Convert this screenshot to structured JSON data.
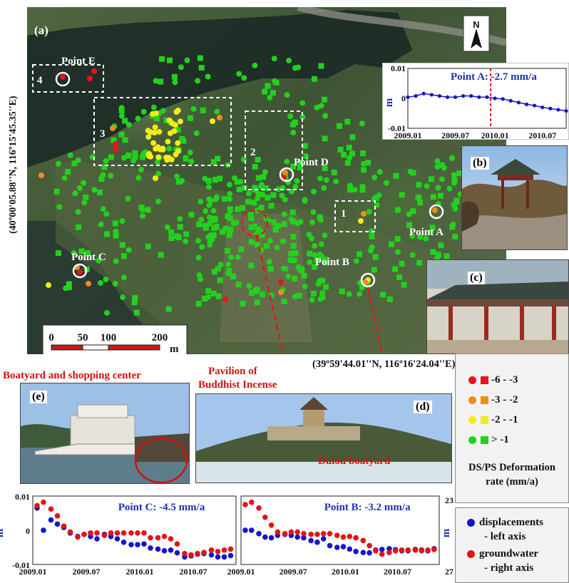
{
  "map": {
    "panel_label": "(a)",
    "coord_left": "(40º00'05.88''N, 116º15'45.35''E)",
    "coord_bottom": "(39º59'44.01''N, 116º16'24.04''E)",
    "north_label": "N",
    "scale": {
      "ticks": [
        "0",
        "50",
        "100",
        "200"
      ],
      "unit": "m"
    },
    "areas": [
      "1",
      "2",
      "3",
      "4"
    ],
    "points": [
      "Point A",
      "Point B",
      "Point C",
      "Point D",
      "Point E"
    ]
  },
  "photos": {
    "b": "(b)",
    "c": "(c)",
    "d": "(d)",
    "e": "(e)",
    "e_caption": "Boatyard and shopping center",
    "d_caption_1": "Pavilion of",
    "d_caption_2": "Buddhist Incense",
    "d_caption_3": "Duiou boatyard"
  },
  "legend": {
    "rows": [
      {
        "label": "-6 - -3",
        "color": "#e8131b"
      },
      {
        "label": "-3 - -2",
        "color": "#f28c1c"
      },
      {
        "label": "-2 - -1",
        "color": "#f3ec16"
      },
      {
        "label": "> -1",
        "color": "#22d11d"
      }
    ],
    "title_1": "DS/PS Deformation",
    "title_2": "rate (mm/a)",
    "series_1": "displacements",
    "series_1b": "- left axis",
    "series_2": "groundwater",
    "series_2b": "- right axis",
    "series_1_color": "#1616c8",
    "series_2_color": "#e31414"
  },
  "chart_data": [
    {
      "type": "line",
      "title": "Point A: -2.7 mm/a",
      "ylabel": "m",
      "x": [
        "2009.01",
        "2009.02",
        "2009.04",
        "2009.05",
        "2009.06",
        "2009.07",
        "2009.08",
        "2009.09",
        "2009.10",
        "2009.11",
        "2009.12",
        "2010.01",
        "2010.02",
        "2010.03",
        "2010.04",
        "2010.05",
        "2010.06",
        "2010.07",
        "2010.08",
        "2010.09",
        "2010.10"
      ],
      "values": [
        0.0004,
        0.0008,
        0.0016,
        0.0012,
        0.0008,
        0.0004,
        0.0004,
        0.0008,
        0.0008,
        0.0004,
        0.0004,
        0.0,
        -0.0002,
        -0.0008,
        -0.0014,
        -0.002,
        -0.0024,
        -0.003,
        -0.0034,
        -0.0038,
        -0.0042
      ],
      "marker_x": "2010.01",
      "ylim": [
        -0.01,
        0.01
      ],
      "yticks": [
        "0.01",
        "0",
        "-0.01"
      ],
      "xticks": [
        "2009.01",
        "2009.07",
        "2010.01",
        "2010.07"
      ]
    },
    {
      "type": "scatter",
      "title": "Point C: -4.5 mm/a",
      "ylabel": "m",
      "ylim": [
        -0.01,
        0.01
      ],
      "yticks": [
        "0.01",
        "0",
        "-0.01"
      ],
      "xticks": [
        "2009.01",
        "2009.07",
        "2010.01",
        "2010.07"
      ],
      "series": [
        {
          "name": "displacements",
          "x": [
            0.0,
            0.06,
            0.13,
            0.19,
            0.25,
            0.31,
            0.38,
            0.44,
            0.5,
            0.56,
            0.63,
            0.69,
            0.75,
            0.81,
            0.88,
            0.94,
            1.0,
            1.06,
            1.13,
            1.19,
            1.25,
            1.31,
            1.38,
            1.44,
            1.5,
            1.56,
            1.63,
            1.69,
            1.75,
            1.81
          ],
          "values": [
            0.0065,
            0.0,
            0.003,
            0.0018,
            0.0008,
            -0.0008,
            -0.0018,
            -0.0012,
            -0.0018,
            -0.0025,
            -0.0012,
            -0.0018,
            -0.0025,
            -0.0035,
            -0.0042,
            -0.0042,
            -0.004,
            -0.0052,
            -0.0055,
            -0.006,
            -0.0058,
            -0.0066,
            -0.0078,
            -0.0075,
            -0.007,
            -0.0068,
            -0.0072,
            -0.0078,
            -0.0078,
            -0.0074
          ]
        },
        {
          "name": "groundwater",
          "x": [
            0.0,
            0.06,
            0.13,
            0.19,
            0.25,
            0.31,
            0.38,
            0.44,
            0.5,
            0.56,
            0.63,
            0.69,
            0.75,
            0.81,
            0.88,
            0.94,
            1.0,
            1.06,
            1.13,
            1.19,
            1.25,
            1.31,
            1.38,
            1.44,
            1.5,
            1.56,
            1.63,
            1.69,
            1.75,
            1.81
          ],
          "values": [
            0.0072,
            0.0082,
            0.0062,
            0.0042,
            0.0012,
            -0.0005,
            -0.002,
            -0.0012,
            -0.0008,
            -0.0008,
            -0.0015,
            -0.0008,
            -0.0008,
            -0.0008,
            -0.0008,
            -0.0008,
            -0.0008,
            -0.0022,
            -0.0022,
            -0.0018,
            -0.0025,
            -0.004,
            -0.0068,
            -0.0072,
            -0.0068,
            -0.0065,
            -0.0058,
            -0.0062,
            -0.0058,
            -0.0055
          ]
        }
      ]
    },
    {
      "type": "scatter",
      "title": "Point B: -3.2 mm/a",
      "ylabel": "m",
      "ylim_right": [
        23,
        27
      ],
      "yticks_right": [
        "23",
        "27"
      ],
      "xticks": [
        "2009.01",
        "2009.07",
        "2010.01",
        "2010.07"
      ],
      "series": [
        {
          "name": "displacements",
          "x": [
            0.0,
            0.06,
            0.13,
            0.19,
            0.25,
            0.31,
            0.38,
            0.44,
            0.5,
            0.56,
            0.63,
            0.69,
            0.75,
            0.81,
            0.88,
            0.94,
            1.0,
            1.06,
            1.13,
            1.19,
            1.25,
            1.31,
            1.38,
            1.44,
            1.5,
            1.56,
            1.63,
            1.69,
            1.75,
            1.81
          ],
          "values": [
            0.0,
            0.0,
            -0.001,
            -0.002,
            -0.0022,
            -0.0015,
            -0.0012,
            -0.0015,
            -0.002,
            -0.0022,
            -0.003,
            -0.0035,
            -0.0025,
            -0.0045,
            -0.005,
            -0.0048,
            -0.0055,
            -0.0062,
            -0.0065,
            -0.0066,
            -0.0058,
            -0.0056,
            -0.0054,
            -0.0057,
            -0.006,
            -0.006,
            -0.0056,
            -0.0058,
            -0.006,
            -0.0054
          ]
        },
        {
          "name": "groundwater",
          "x": [
            0.0,
            0.06,
            0.13,
            0.19,
            0.25,
            0.31,
            0.38,
            0.44,
            0.5,
            0.56,
            0.63,
            0.69,
            0.75,
            0.81,
            0.88,
            0.94,
            1.0,
            1.06,
            1.13,
            1.19,
            1.25,
            1.31,
            1.38,
            1.44,
            1.5,
            1.56,
            1.63,
            1.69,
            1.75,
            1.81
          ],
          "values": [
            0.0075,
            0.0082,
            0.0065,
            0.0038,
            0.0015,
            -0.0005,
            -0.001,
            -0.0005,
            -0.0005,
            -0.001,
            -0.0012,
            -0.0012,
            -0.001,
            -0.001,
            -0.0015,
            -0.002,
            -0.0018,
            -0.0022,
            -0.003,
            -0.0045,
            -0.006,
            -0.007,
            -0.0065,
            -0.006,
            -0.0058,
            -0.0058,
            -0.0058,
            -0.006,
            -0.0058,
            -0.0056
          ]
        }
      ]
    }
  ]
}
